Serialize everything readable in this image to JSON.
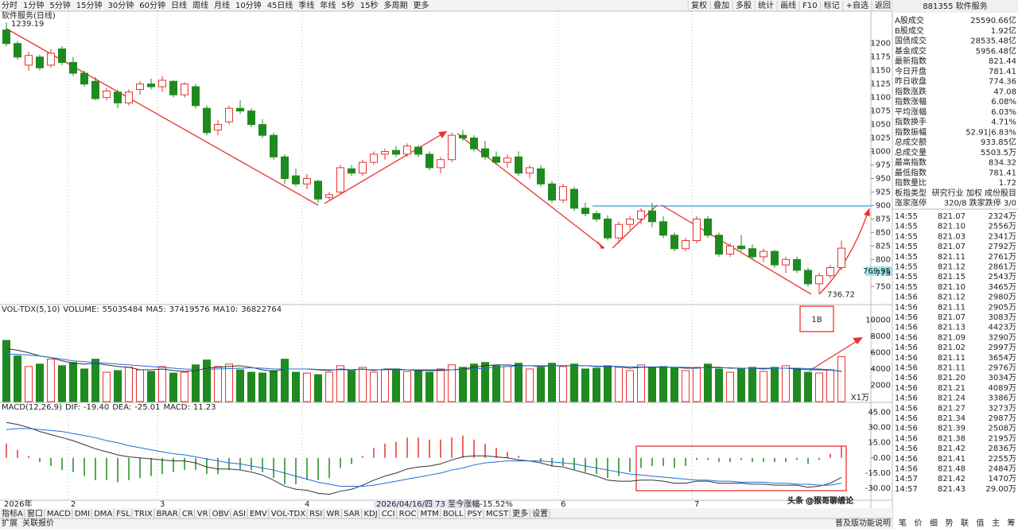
{
  "toolbar": {
    "left": [
      "分时",
      "1分钟",
      "5分钟",
      "15分钟",
      "30分钟",
      "60分钟",
      "日线",
      "周线",
      "月线",
      "10分钟",
      "45日线",
      "季线",
      "年线",
      "5秒",
      "15秒",
      "多周期",
      "更多"
    ],
    "active_index": 6,
    "right": [
      "复权",
      "叠加",
      "多股",
      "统计",
      "画线",
      "F10",
      "标记",
      "+自选",
      "返回"
    ]
  },
  "chart_data": [
    {
      "type": "candlestick",
      "title": "软件服务(日线)",
      "up_color": "#e8322e",
      "down_color": "#1f8a1f",
      "open": [
        1225,
        1200,
        1160,
        1175,
        1160,
        1190,
        1165,
        1145,
        1130,
        1100,
        1110,
        1090,
        1115,
        1125,
        1120,
        1130,
        1105,
        1120,
        1080,
        1040,
        1055,
        1080,
        1075,
        1050,
        1030,
        990,
        955,
        940,
        945,
        915,
        925,
        968,
        960,
        980,
        995,
        1002,
        995,
        1008,
        995,
        970,
        985,
        1030,
        1025,
        1005,
        990,
        980,
        990,
        960,
        968,
        940,
        910,
        930,
        895,
        885,
        875,
        840,
        865,
        875,
        890,
        870,
        845,
        820,
        835,
        875,
        845,
        810,
        825,
        820,
        805,
        815,
        790,
        800,
        780,
        755,
        770,
        785
      ],
      "high": [
        1239.19,
        1205,
        1185,
        1180,
        1190,
        1195,
        1175,
        1150,
        1138,
        1118,
        1115,
        1115,
        1130,
        1135,
        1140,
        1132,
        1128,
        1125,
        1085,
        1058,
        1085,
        1095,
        1080,
        1060,
        1035,
        995,
        968,
        958,
        948,
        925,
        975,
        975,
        985,
        1000,
        1005,
        1010,
        1015,
        1012,
        1000,
        990,
        1035,
        1040,
        1030,
        1020,
        1000,
        995,
        1000,
        975,
        975,
        945,
        940,
        935,
        905,
        890,
        882,
        870,
        880,
        895,
        905,
        880,
        850,
        840,
        880,
        880,
        850,
        830,
        845,
        828,
        820,
        818,
        805,
        805,
        785,
        775,
        790,
        835
      ],
      "low": [
        1195,
        1170,
        1150,
        1150,
        1155,
        1160,
        1140,
        1120,
        1095,
        1095,
        1080,
        1085,
        1105,
        1115,
        1110,
        1100,
        1100,
        1080,
        1030,
        1030,
        1050,
        1070,
        1045,
        1025,
        985,
        940,
        935,
        930,
        905,
        910,
        920,
        955,
        955,
        975,
        985,
        990,
        990,
        990,
        965,
        960,
        980,
        1020,
        1000,
        985,
        975,
        970,
        955,
        950,
        935,
        905,
        905,
        890,
        880,
        870,
        835,
        830,
        855,
        865,
        860,
        840,
        815,
        815,
        830,
        840,
        805,
        805,
        815,
        800,
        795,
        785,
        775,
        775,
        750,
        736.72,
        765,
        780
      ],
      "close": [
        1200,
        1175,
        1178,
        1155,
        1182,
        1165,
        1145,
        1125,
        1098,
        1112,
        1090,
        1110,
        1125,
        1120,
        1132,
        1105,
        1125,
        1085,
        1035,
        1050,
        1080,
        1075,
        1050,
        1030,
        990,
        950,
        940,
        950,
        912,
        920,
        970,
        960,
        980,
        995,
        1000,
        995,
        1010,
        995,
        970,
        985,
        1030,
        1025,
        1005,
        990,
        980,
        988,
        960,
        970,
        940,
        910,
        935,
        895,
        885,
        875,
        840,
        865,
        875,
        890,
        870,
        845,
        820,
        835,
        875,
        845,
        810,
        825,
        820,
        805,
        815,
        790,
        800,
        780,
        755,
        770,
        785,
        821
      ],
      "ylim": [
        718,
        1260
      ],
      "yticks": [
        750,
        775,
        800,
        825,
        850,
        875,
        900,
        925,
        950,
        975,
        1000,
        1025,
        1050,
        1075,
        1100,
        1125,
        1150,
        1175,
        1200
      ],
      "x_labels": [
        {
          "value": 0,
          "label": "2026年"
        },
        {
          "value": 6,
          "label": "2"
        },
        {
          "value": 14,
          "label": "3"
        },
        {
          "value": 27,
          "label": "4"
        },
        {
          "value": 50,
          "label": "6"
        },
        {
          "value": 62,
          "label": "7"
        }
      ],
      "annotations": {
        "high_label": "1239.19",
        "low_label": "736.72",
        "last_label": "769.95",
        "box_label": "1B",
        "range_note": "2026/04/16/四 73 至今涨幅-15.52%"
      }
    },
    {
      "type": "bar",
      "title": "VOL-TDX(5,10)",
      "name": "VOLUME:",
      "reading": "55035484",
      "unit_label": "X1万",
      "values": [
        7500,
        5600,
        4300,
        4600,
        5200,
        4400,
        4800,
        4000,
        5200,
        3600,
        3800,
        4200,
        3900,
        3700,
        4300,
        3500,
        3600,
        4500,
        5100,
        4300,
        4600,
        3900,
        3600,
        3500,
        3800,
        5200,
        3600,
        3500,
        3300,
        3600,
        4400,
        3800,
        4200,
        3600,
        3900,
        4000,
        3700,
        3900,
        3600,
        4000,
        4500,
        4200,
        4600,
        4800,
        4400,
        4300,
        4700,
        4000,
        4200,
        4700,
        4300,
        4600,
        4000,
        4100,
        4400,
        4200,
        3800,
        4500,
        4200,
        4300,
        4100,
        3800,
        4200,
        4600,
        4000,
        3600,
        4000,
        4200,
        3700,
        4200,
        4400,
        4000,
        3600,
        3500,
        3900,
        5503.5
      ],
      "series": [
        {
          "name": "MA5:",
          "reading": "37419576",
          "color": "#333333",
          "values": [
            6500,
            6300,
            6000,
            5600,
            5400,
            5000,
            4700,
            4600,
            4700,
            4500,
            4300,
            4200,
            3900,
            3900,
            4000,
            3800,
            3700,
            3800,
            4100,
            4200,
            4300,
            4400,
            4200,
            3900,
            3700,
            4000,
            4000,
            4000,
            3900,
            3800,
            4000,
            3900,
            4000,
            3800,
            4000,
            4000,
            3900,
            3800,
            3800,
            3800,
            3900,
            4000,
            4200,
            4400,
            4500,
            4500,
            4400,
            4400,
            4300,
            4400,
            4400,
            4400,
            4400,
            4300,
            4300,
            4300,
            4100,
            4200,
            4200,
            4200,
            4200,
            4100,
            4100,
            4200,
            4200,
            4100,
            4100,
            4100,
            4000,
            4100,
            4100,
            4000,
            3900,
            3900,
            3850,
            3742
          ]
        },
        {
          "name": "MA10:",
          "reading": "36822764",
          "color": "#1e6fd9",
          "values": [
            5800,
            5800,
            5700,
            5600,
            5400,
            5200,
            5000,
            4900,
            4800,
            4700,
            4600,
            4500,
            4400,
            4300,
            4200,
            4100,
            4000,
            3950,
            3950,
            4000,
            4050,
            4100,
            4150,
            4100,
            4000,
            4000,
            4000,
            4000,
            3950,
            3900,
            3900,
            3900,
            3950,
            3900,
            3900,
            3900,
            3900,
            3900,
            3900,
            3900,
            3900,
            3950,
            4000,
            4100,
            4200,
            4300,
            4350,
            4400,
            4400,
            4400,
            4400,
            4400,
            4400,
            4350,
            4350,
            4300,
            4250,
            4250,
            4250,
            4250,
            4200,
            4200,
            4150,
            4150,
            4150,
            4150,
            4100,
            4100,
            4100,
            4100,
            4100,
            4100,
            4050,
            4000,
            3900,
            3682
          ]
        }
      ],
      "ylim": [
        0,
        11800
      ],
      "yticks": [
        2000,
        4000,
        6000,
        8000,
        10000
      ]
    },
    {
      "type": "macd",
      "title": "MACD(12,26,9)",
      "name": "MACD:",
      "reading": "11.23",
      "up_color": "#e8322e",
      "down_color": "#1f8a1f",
      "values": [
        14,
        8,
        2,
        -4,
        -8,
        -12,
        -14,
        -18,
        -22,
        -22,
        -24,
        -22,
        -20,
        -18,
        -16,
        -14,
        -12,
        -12,
        -16,
        -16,
        -12,
        -12,
        -12,
        -14,
        -20,
        -26,
        -26,
        -22,
        -22,
        -20,
        -10,
        -6,
        2,
        10,
        14,
        16,
        20,
        20,
        18,
        18,
        20,
        22,
        18,
        14,
        10,
        6,
        2,
        0,
        -4,
        -8,
        -8,
        -12,
        -14,
        -16,
        -20,
        -18,
        -14,
        -10,
        -8,
        -8,
        -10,
        -8,
        -2,
        -2,
        -4,
        -4,
        -2,
        -4,
        -4,
        -4,
        -4,
        -2,
        -6,
        -2,
        4,
        11.23
      ],
      "series": [
        {
          "name": "DIF:",
          "reading": "-19.40",
          "color": "#333333",
          "values": [
            35,
            33,
            30,
            26,
            23,
            20,
            17,
            13,
            9,
            6,
            3,
            1,
            0,
            -1,
            -2,
            -3,
            -3,
            -5,
            -9,
            -11,
            -11,
            -12,
            -14,
            -17,
            -22,
            -28,
            -31,
            -32,
            -35,
            -36,
            -33,
            -31,
            -27,
            -22,
            -18,
            -15,
            -11,
            -9,
            -8,
            -6,
            -2,
            1,
            2,
            2,
            1,
            0,
            -2,
            -3,
            -5,
            -8,
            -9,
            -12,
            -15,
            -18,
            -22,
            -23,
            -23,
            -22,
            -22,
            -23,
            -25,
            -25,
            -23,
            -23,
            -25,
            -25,
            -25,
            -26,
            -26,
            -27,
            -27,
            -27,
            -29,
            -28,
            -25,
            -19.4
          ]
        },
        {
          "name": "DEA:",
          "reading": "-25.01",
          "color": "#1e6fd9",
          "values": [
            28,
            29,
            29,
            28,
            27,
            26,
            24,
            22,
            20,
            17,
            15,
            12,
            10,
            8,
            6,
            4,
            3,
            1,
            -1,
            -3,
            -5,
            -6,
            -8,
            -10,
            -12,
            -15,
            -18,
            -21,
            -24,
            -26,
            -28,
            -28,
            -28,
            -27,
            -25,
            -23,
            -21,
            -19,
            -17,
            -15,
            -12,
            -10,
            -7,
            -5,
            -4,
            -3,
            -3,
            -3,
            -3,
            -4,
            -5,
            -6,
            -8,
            -10,
            -12,
            -14,
            -16,
            -17,
            -18,
            -19,
            -20,
            -21,
            -22,
            -22,
            -23,
            -23,
            -24,
            -24,
            -24,
            -25,
            -25,
            -26,
            -26,
            -27,
            -27,
            -25.01
          ]
        }
      ],
      "ylim": [
        -41,
        54
      ],
      "yticks": [
        {
          "value": 45,
          "label": "45.00"
        },
        {
          "value": 30,
          "label": "30.00"
        },
        {
          "value": 15,
          "label": "15.00"
        },
        {
          "value": 0,
          "label": "0.00"
        },
        {
          "value": -15,
          "label": "-15.00"
        },
        {
          "value": -30,
          "label": "-30.00"
        }
      ]
    }
  ],
  "indicator_tabs": [
    "指标A",
    "窗口",
    "MACD",
    "DMI",
    "DMA",
    "FSL",
    "TRIX",
    "BRAR",
    "CR",
    "VR",
    "OBV",
    "ASI",
    "EMV",
    "VOL-TDX",
    "RSI",
    "WR",
    "SAR",
    "KDJ",
    "CCI",
    "ROC",
    "MTM",
    "BOLL",
    "PSY",
    "MCST",
    "更多",
    "设置"
  ],
  "indicator_active": 2,
  "bottom_bar": {
    "left": [
      "扩展",
      "关联报价"
    ],
    "right": "普及版功能说明",
    "tabs": [
      "笔",
      "价",
      "细",
      "势",
      "联",
      "值",
      "主",
      "筹"
    ]
  },
  "quote_panel": {
    "title": "881355 软件服务",
    "rows": [
      {
        "label": "A股成交",
        "value": "25590.66亿",
        "color": "#222222"
      },
      {
        "label": "B股成交",
        "value": "1.92亿",
        "color": "#222222"
      },
      {
        "label": "国债成交",
        "value": "28535.48亿",
        "color": "#222222"
      },
      {
        "label": "基金成交",
        "value": "5956.48亿",
        "color": "#222222"
      },
      {
        "label": "最新指数",
        "value": "821.44",
        "color": "#e8322e"
      },
      {
        "label": "今日开盘",
        "value": "781.41",
        "color": "#e8322e"
      },
      {
        "label": "昨日收盘",
        "value": "774.36",
        "color": "#222222"
      },
      {
        "label": "指数涨跌",
        "value": "47.08",
        "color": "#e8322e"
      },
      {
        "label": "指数涨幅",
        "value": "6.08%",
        "color": "#e8322e"
      },
      {
        "label": "平均涨幅",
        "value": "6.03%",
        "color": "#e8322e"
      },
      {
        "label": "指数换手",
        "value": "4.71%",
        "color": "#222222"
      },
      {
        "label": "指数振幅",
        "value": "52.91|6.83%",
        "color": "#222222"
      },
      {
        "label": "总成交额",
        "value": "933.85亿",
        "color": "#222222"
      },
      {
        "label": "总成交量",
        "value": "5503.5万",
        "color": "#222222"
      },
      {
        "label": "最高指数",
        "value": "834.32",
        "color": "#e8322e"
      },
      {
        "label": "最低指数",
        "value": "781.41",
        "color": "#e8322e"
      },
      {
        "label": "指数量比",
        "value": "1.72",
        "color": "#e8322e"
      },
      {
        "label": "板指类型",
        "value": "研究行业 加权 成份股目",
        "color": "#222222"
      },
      {
        "label": "涨家涨停",
        "value": "320/8 跌家跌停 3/0",
        "color": "#1e6fd9"
      }
    ],
    "ticks": [
      [
        "14:55",
        "821.07",
        "2324万"
      ],
      [
        "14:55",
        "821.10",
        "2556万"
      ],
      [
        "14:55",
        "821.03",
        "2341万"
      ],
      [
        "14:55",
        "821.07",
        "2792万"
      ],
      [
        "14:55",
        "821.11",
        "2761万"
      ],
      [
        "14:55",
        "821.12",
        "2861万"
      ],
      [
        "14:55",
        "821.15",
        "2543万"
      ],
      [
        "14:55",
        "821.10",
        "3465万"
      ],
      [
        "14:56",
        "821.12",
        "2980万"
      ],
      [
        "14:56",
        "821.11",
        "2905万"
      ],
      [
        "14:56",
        "821.07",
        "3083万"
      ],
      [
        "14:56",
        "821.13",
        "4423万"
      ],
      [
        "14:56",
        "821.09",
        "3290万"
      ],
      [
        "14:56",
        "821.02",
        "2997万"
      ],
      [
        "14:56",
        "821.11",
        "3654万"
      ],
      [
        "14:56",
        "821.11",
        "2976万"
      ],
      [
        "14:56",
        "821.20",
        "3034万"
      ],
      [
        "14:56",
        "821.21",
        "4089万"
      ],
      [
        "14:56",
        "821.24",
        "3386万"
      ],
      [
        "14:56",
        "821.27",
        "3273万"
      ],
      [
        "14:56",
        "821.34",
        "2987万"
      ],
      [
        "14:56",
        "821.39",
        "2508万"
      ],
      [
        "14:56",
        "821.38",
        "2195万"
      ],
      [
        "14:56",
        "821.42",
        "2836万"
      ],
      [
        "14:56",
        "821.41",
        "2255万"
      ],
      [
        "14:56",
        "821.48",
        "2484万"
      ],
      [
        "14:57",
        "821.42",
        "1470万"
      ],
      [
        "14:57",
        "821.43",
        "29.00万"
      ]
    ]
  },
  "watermark": "头条 @猴哥聊缠论"
}
